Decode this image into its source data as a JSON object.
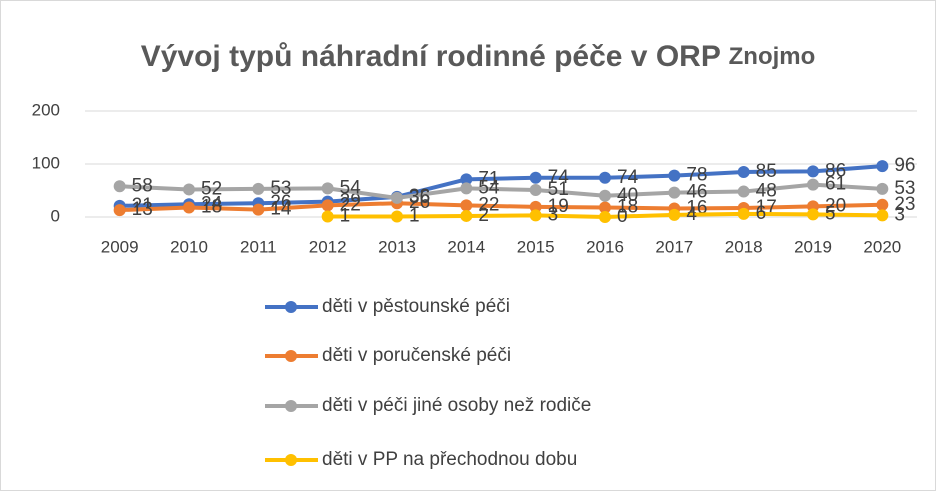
{
  "chart_data": {
    "type": "line",
    "title": "Vývoj typů náhradní rodinné péče v ORP",
    "title_suffix": "Znojmo",
    "categories": [
      "2009",
      "2010",
      "2011",
      "2012",
      "2013",
      "2014",
      "2015",
      "2016",
      "2017",
      "2018",
      "2019",
      "2020"
    ],
    "series": [
      {
        "name": "děti v pěstounské péči",
        "color": "#4472c4",
        "values": [
          21,
          24,
          26,
          29,
          38,
          71,
          74,
          74,
          78,
          85,
          86,
          96
        ]
      },
      {
        "name": "děti v poručenské péči",
        "color": "#ed7d31",
        "values": [
          13,
          18,
          14,
          22,
          26,
          22,
          19,
          18,
          16,
          17,
          20,
          23
        ]
      },
      {
        "name": "děti v péči jiné osoby než rodiče",
        "color": "#a5a5a5",
        "values": [
          58,
          52,
          53,
          54,
          36,
          54,
          51,
          40,
          46,
          48,
          61,
          53
        ]
      },
      {
        "name": "děti v PP na přechodnou dobu",
        "color": "#ffc000",
        "values": [
          null,
          null,
          null,
          1,
          1,
          2,
          3,
          0,
          4,
          6,
          5,
          3
        ]
      }
    ],
    "ylim": [
      0,
      200
    ],
    "yticks": [
      0,
      100,
      200
    ],
    "grid": true,
    "legend": "bottom"
  }
}
